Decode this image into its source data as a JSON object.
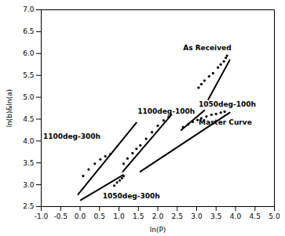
{
  "chart_data": {
    "type": "line",
    "xlabel": "ln(P)",
    "ylabel": "ln(b)&ln(a)",
    "xlim": [
      -1.0,
      5.0
    ],
    "ylim": [
      2.5,
      7.0
    ],
    "xticks": [
      {
        "value": -1.0,
        "label": "-1.0"
      },
      -0.5,
      {
        "value": 0.0,
        "label": "0.0"
      },
      0.5,
      {
        "value": 1.0,
        "label": "1.0"
      },
      1.5,
      {
        "value": 2.0,
        "label": "2.0"
      },
      2.5,
      {
        "value": 3.0,
        "label": "3.0"
      },
      3.5,
      {
        "value": 4.0,
        "label": "4.0"
      },
      4.5,
      {
        "value": 5.0,
        "label": "5.0"
      }
    ],
    "yticks": [
      2.5,
      {
        "value": 3.0,
        "label": "3.0"
      },
      3.5,
      {
        "value": 4.0,
        "label": "4.0"
      },
      4.5,
      {
        "value": 5.0,
        "label": "5.0"
      },
      5.5,
      {
        "value": 6.0,
        "label": "6.0"
      },
      6.5,
      {
        "value": 7.0,
        "label": "7.0"
      }
    ],
    "grid": false,
    "series": [
      {
        "type": "line",
        "line_style": "solid",
        "color": "#000000",
        "x": [
          3.3,
          3.85
        ],
        "values": [
          4.95,
          5.85
        ]
      },
      {
        "type": "line",
        "line_style": "solid",
        "color": "#000000",
        "x": [
          2.6,
          3.2
        ],
        "values": [
          4.25,
          4.7
        ]
      },
      {
        "type": "line",
        "line_style": "solid",
        "color": "#000000",
        "x": [
          1.55,
          3.85
        ],
        "values": [
          3.3,
          4.65
        ]
      },
      {
        "type": "line",
        "line_style": "solid",
        "color": "#000000",
        "x": [
          1.1,
          2.35
        ],
        "values": [
          3.3,
          4.6
        ]
      },
      {
        "type": "line",
        "line_style": "solid",
        "color": "#000000",
        "x": [
          -0.05,
          1.45
        ],
        "values": [
          2.78,
          4.42
        ]
      },
      {
        "type": "line",
        "line_style": "solid",
        "color": "#000000",
        "x": [
          0.02,
          1.1
        ],
        "values": [
          2.65,
          3.22
        ]
      },
      {
        "type": "scatter",
        "marker": "dot",
        "color": "#000000",
        "x": [
          3.05,
          3.12,
          3.2,
          3.32,
          3.42,
          3.55,
          3.62,
          3.7,
          3.75,
          3.78
        ],
        "values": [
          5.22,
          5.3,
          5.38,
          5.48,
          5.55,
          5.68,
          5.75,
          5.82,
          5.9,
          5.95
        ]
      },
      {
        "type": "scatter",
        "marker": "dot",
        "color": "#000000",
        "x": [
          2.65,
          2.78,
          2.9,
          3.02,
          3.12,
          3.25,
          3.38,
          3.5,
          3.62,
          3.72
        ],
        "values": [
          4.32,
          4.38,
          4.44,
          4.48,
          4.52,
          4.56,
          4.6,
          4.62,
          4.65,
          4.67
        ]
      },
      {
        "type": "scatter",
        "marker": "dot",
        "color": "#000000",
        "x": [
          1.12,
          1.22,
          1.35,
          1.45,
          1.55,
          1.7,
          1.85,
          2.0,
          2.15,
          2.28
        ],
        "values": [
          3.48,
          3.6,
          3.72,
          3.82,
          3.9,
          4.05,
          4.2,
          4.35,
          4.47,
          4.55
        ]
      },
      {
        "type": "scatter",
        "marker": "dot",
        "color": "#000000",
        "x": [
          0.88,
          0.95,
          1.02,
          1.08,
          1.12
        ],
        "values": [
          2.98,
          3.05,
          3.1,
          3.15,
          3.2
        ]
      },
      {
        "type": "scatter",
        "marker": "dot",
        "color": "#000000",
        "x": [
          0.08,
          0.22,
          0.38,
          0.52,
          0.65,
          0.78
        ],
        "values": [
          3.2,
          3.35,
          3.48,
          3.58,
          3.65,
          3.7
        ]
      }
    ],
    "annotations": [
      {
        "text": "As Received",
        "x": 2.65,
        "y": 6.07
      },
      {
        "text": "1050deg-100h",
        "x": 3.05,
        "y": 4.78
      },
      {
        "text": "Master Curve",
        "x": 3.05,
        "y": 4.38
      },
      {
        "text": "1100deg-100h",
        "x": 1.48,
        "y": 4.63
      },
      {
        "text": "1100deg-300h",
        "x": -0.95,
        "y": 4.05
      },
      {
        "text": "1050deg-300h",
        "x": 0.58,
        "y": 2.68
      }
    ]
  }
}
